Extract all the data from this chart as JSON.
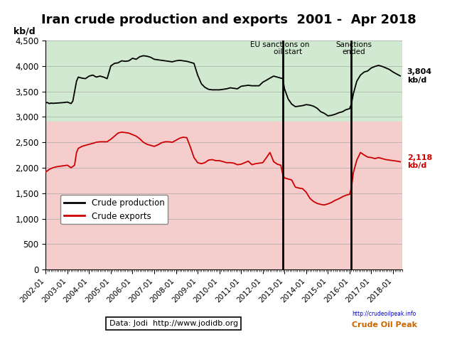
{
  "title": "Iran crude production and exports  2001 -  Apr 2018",
  "ylabel": "kb/d",
  "ylim": [
    0,
    4500
  ],
  "yticks": [
    0,
    500,
    1000,
    1500,
    2000,
    2500,
    3000,
    3500,
    4000,
    4500
  ],
  "sanctions_eu_x": 2012.92,
  "sanctions_end_x": 2016.08,
  "eu_label_line1": "EU sanctions on",
  "eu_label_line2": "oil start",
  "sanctions_end_label_line1": "Sanctions",
  "sanctions_end_label_line2": "ended",
  "legend_prod": "Crude production",
  "legend_exp": "Crude exports",
  "bg_color_top": "#c8e6c8",
  "bg_color_bottom": "#f5c5c5",
  "prod_color": "#000000",
  "exp_color": "#cc0000",
  "title_fontsize": 13,
  "xtick_labels": [
    "2002-01",
    "2003-01",
    "2004-01",
    "2005-01",
    "2006-01",
    "2007-01",
    "2008-01",
    "2009-01",
    "2010-01",
    "2011-01",
    "2012-01",
    "2013-01",
    "2014-01",
    "2015-01",
    "2016-01",
    "2017-01",
    "2018-01"
  ],
  "split_y": 2900,
  "xlim": [
    2002.0,
    2018.42
  ],
  "production_data": [
    [
      2002.0,
      3280
    ],
    [
      2002.08,
      3280
    ],
    [
      2002.17,
      3260
    ],
    [
      2002.25,
      3270
    ],
    [
      2002.33,
      3265
    ],
    [
      2002.5,
      3270
    ],
    [
      2002.67,
      3275
    ],
    [
      2002.83,
      3280
    ],
    [
      2003.0,
      3290
    ],
    [
      2003.17,
      3260
    ],
    [
      2003.25,
      3310
    ],
    [
      2003.42,
      3700
    ],
    [
      2003.5,
      3780
    ],
    [
      2003.67,
      3760
    ],
    [
      2003.83,
      3750
    ],
    [
      2004.0,
      3800
    ],
    [
      2004.17,
      3820
    ],
    [
      2004.33,
      3780
    ],
    [
      2004.5,
      3800
    ],
    [
      2004.67,
      3780
    ],
    [
      2004.83,
      3750
    ],
    [
      2005.0,
      4000
    ],
    [
      2005.17,
      4050
    ],
    [
      2005.33,
      4060
    ],
    [
      2005.5,
      4100
    ],
    [
      2005.67,
      4090
    ],
    [
      2005.83,
      4100
    ],
    [
      2006.0,
      4150
    ],
    [
      2006.17,
      4130
    ],
    [
      2006.33,
      4180
    ],
    [
      2006.5,
      4200
    ],
    [
      2006.67,
      4190
    ],
    [
      2006.83,
      4170
    ],
    [
      2007.0,
      4130
    ],
    [
      2007.17,
      4120
    ],
    [
      2007.33,
      4110
    ],
    [
      2007.5,
      4100
    ],
    [
      2007.67,
      4090
    ],
    [
      2007.83,
      4080
    ],
    [
      2008.0,
      4100
    ],
    [
      2008.17,
      4110
    ],
    [
      2008.33,
      4100
    ],
    [
      2008.5,
      4090
    ],
    [
      2008.67,
      4070
    ],
    [
      2008.83,
      4050
    ],
    [
      2009.0,
      3820
    ],
    [
      2009.17,
      3650
    ],
    [
      2009.33,
      3580
    ],
    [
      2009.5,
      3540
    ],
    [
      2009.67,
      3530
    ],
    [
      2009.83,
      3530
    ],
    [
      2010.0,
      3530
    ],
    [
      2010.17,
      3540
    ],
    [
      2010.33,
      3550
    ],
    [
      2010.5,
      3570
    ],
    [
      2010.67,
      3560
    ],
    [
      2010.83,
      3550
    ],
    [
      2011.0,
      3600
    ],
    [
      2011.17,
      3610
    ],
    [
      2011.33,
      3620
    ],
    [
      2011.5,
      3610
    ],
    [
      2011.67,
      3610
    ],
    [
      2011.83,
      3610
    ],
    [
      2012.0,
      3680
    ],
    [
      2012.17,
      3720
    ],
    [
      2012.33,
      3760
    ],
    [
      2012.5,
      3800
    ],
    [
      2012.67,
      3780
    ],
    [
      2012.83,
      3760
    ],
    [
      2012.92,
      3750
    ],
    [
      2013.0,
      3550
    ],
    [
      2013.17,
      3350
    ],
    [
      2013.33,
      3250
    ],
    [
      2013.5,
      3200
    ],
    [
      2013.67,
      3210
    ],
    [
      2013.83,
      3220
    ],
    [
      2014.0,
      3240
    ],
    [
      2014.17,
      3230
    ],
    [
      2014.33,
      3210
    ],
    [
      2014.5,
      3170
    ],
    [
      2014.67,
      3100
    ],
    [
      2014.83,
      3070
    ],
    [
      2015.0,
      3020
    ],
    [
      2015.17,
      3030
    ],
    [
      2015.33,
      3050
    ],
    [
      2015.5,
      3080
    ],
    [
      2015.67,
      3100
    ],
    [
      2015.83,
      3140
    ],
    [
      2016.0,
      3160
    ],
    [
      2016.08,
      3250
    ],
    [
      2016.17,
      3450
    ],
    [
      2016.33,
      3700
    ],
    [
      2016.5,
      3820
    ],
    [
      2016.67,
      3880
    ],
    [
      2016.83,
      3900
    ],
    [
      2017.0,
      3960
    ],
    [
      2017.17,
      3990
    ],
    [
      2017.33,
      4010
    ],
    [
      2017.5,
      3990
    ],
    [
      2017.67,
      3960
    ],
    [
      2017.83,
      3930
    ],
    [
      2018.0,
      3880
    ],
    [
      2018.17,
      3840
    ],
    [
      2018.33,
      3804
    ]
  ],
  "exports_data": [
    [
      2002.0,
      1920
    ],
    [
      2002.08,
      1940
    ],
    [
      2002.17,
      1970
    ],
    [
      2002.33,
      2000
    ],
    [
      2002.5,
      2020
    ],
    [
      2002.67,
      2030
    ],
    [
      2002.83,
      2040
    ],
    [
      2003.0,
      2050
    ],
    [
      2003.17,
      2000
    ],
    [
      2003.33,
      2050
    ],
    [
      2003.42,
      2300
    ],
    [
      2003.5,
      2380
    ],
    [
      2003.67,
      2420
    ],
    [
      2003.83,
      2440
    ],
    [
      2004.0,
      2460
    ],
    [
      2004.17,
      2480
    ],
    [
      2004.33,
      2500
    ],
    [
      2004.5,
      2510
    ],
    [
      2004.67,
      2510
    ],
    [
      2004.83,
      2510
    ],
    [
      2005.0,
      2560
    ],
    [
      2005.17,
      2620
    ],
    [
      2005.33,
      2680
    ],
    [
      2005.5,
      2700
    ],
    [
      2005.67,
      2690
    ],
    [
      2005.83,
      2680
    ],
    [
      2006.0,
      2650
    ],
    [
      2006.17,
      2620
    ],
    [
      2006.33,
      2570
    ],
    [
      2006.5,
      2500
    ],
    [
      2006.67,
      2460
    ],
    [
      2006.83,
      2440
    ],
    [
      2007.0,
      2420
    ],
    [
      2007.17,
      2450
    ],
    [
      2007.33,
      2490
    ],
    [
      2007.5,
      2510
    ],
    [
      2007.67,
      2510
    ],
    [
      2007.83,
      2500
    ],
    [
      2008.0,
      2540
    ],
    [
      2008.17,
      2580
    ],
    [
      2008.33,
      2600
    ],
    [
      2008.5,
      2590
    ],
    [
      2008.67,
      2400
    ],
    [
      2008.83,
      2200
    ],
    [
      2009.0,
      2100
    ],
    [
      2009.17,
      2080
    ],
    [
      2009.33,
      2100
    ],
    [
      2009.5,
      2150
    ],
    [
      2009.67,
      2160
    ],
    [
      2009.83,
      2140
    ],
    [
      2010.0,
      2140
    ],
    [
      2010.17,
      2120
    ],
    [
      2010.33,
      2100
    ],
    [
      2010.5,
      2100
    ],
    [
      2010.67,
      2090
    ],
    [
      2010.83,
      2060
    ],
    [
      2011.0,
      2070
    ],
    [
      2011.17,
      2100
    ],
    [
      2011.33,
      2130
    ],
    [
      2011.5,
      2060
    ],
    [
      2011.67,
      2080
    ],
    [
      2011.83,
      2090
    ],
    [
      2012.0,
      2100
    ],
    [
      2012.17,
      2200
    ],
    [
      2012.33,
      2300
    ],
    [
      2012.5,
      2120
    ],
    [
      2012.67,
      2070
    ],
    [
      2012.83,
      2050
    ],
    [
      2012.92,
      1870
    ],
    [
      2013.0,
      1800
    ],
    [
      2013.17,
      1780
    ],
    [
      2013.33,
      1760
    ],
    [
      2013.5,
      1620
    ],
    [
      2013.67,
      1600
    ],
    [
      2013.83,
      1590
    ],
    [
      2014.0,
      1520
    ],
    [
      2014.17,
      1400
    ],
    [
      2014.33,
      1340
    ],
    [
      2014.5,
      1300
    ],
    [
      2014.67,
      1280
    ],
    [
      2014.83,
      1270
    ],
    [
      2015.0,
      1290
    ],
    [
      2015.17,
      1320
    ],
    [
      2015.33,
      1360
    ],
    [
      2015.5,
      1390
    ],
    [
      2015.67,
      1430
    ],
    [
      2015.83,
      1460
    ],
    [
      2016.0,
      1480
    ],
    [
      2016.08,
      1600
    ],
    [
      2016.17,
      1900
    ],
    [
      2016.33,
      2150
    ],
    [
      2016.5,
      2300
    ],
    [
      2016.67,
      2250
    ],
    [
      2016.83,
      2210
    ],
    [
      2017.0,
      2200
    ],
    [
      2017.17,
      2180
    ],
    [
      2017.33,
      2200
    ],
    [
      2017.5,
      2180
    ],
    [
      2017.67,
      2160
    ],
    [
      2017.83,
      2150
    ],
    [
      2018.0,
      2140
    ],
    [
      2018.17,
      2130
    ],
    [
      2018.33,
      2118
    ]
  ]
}
